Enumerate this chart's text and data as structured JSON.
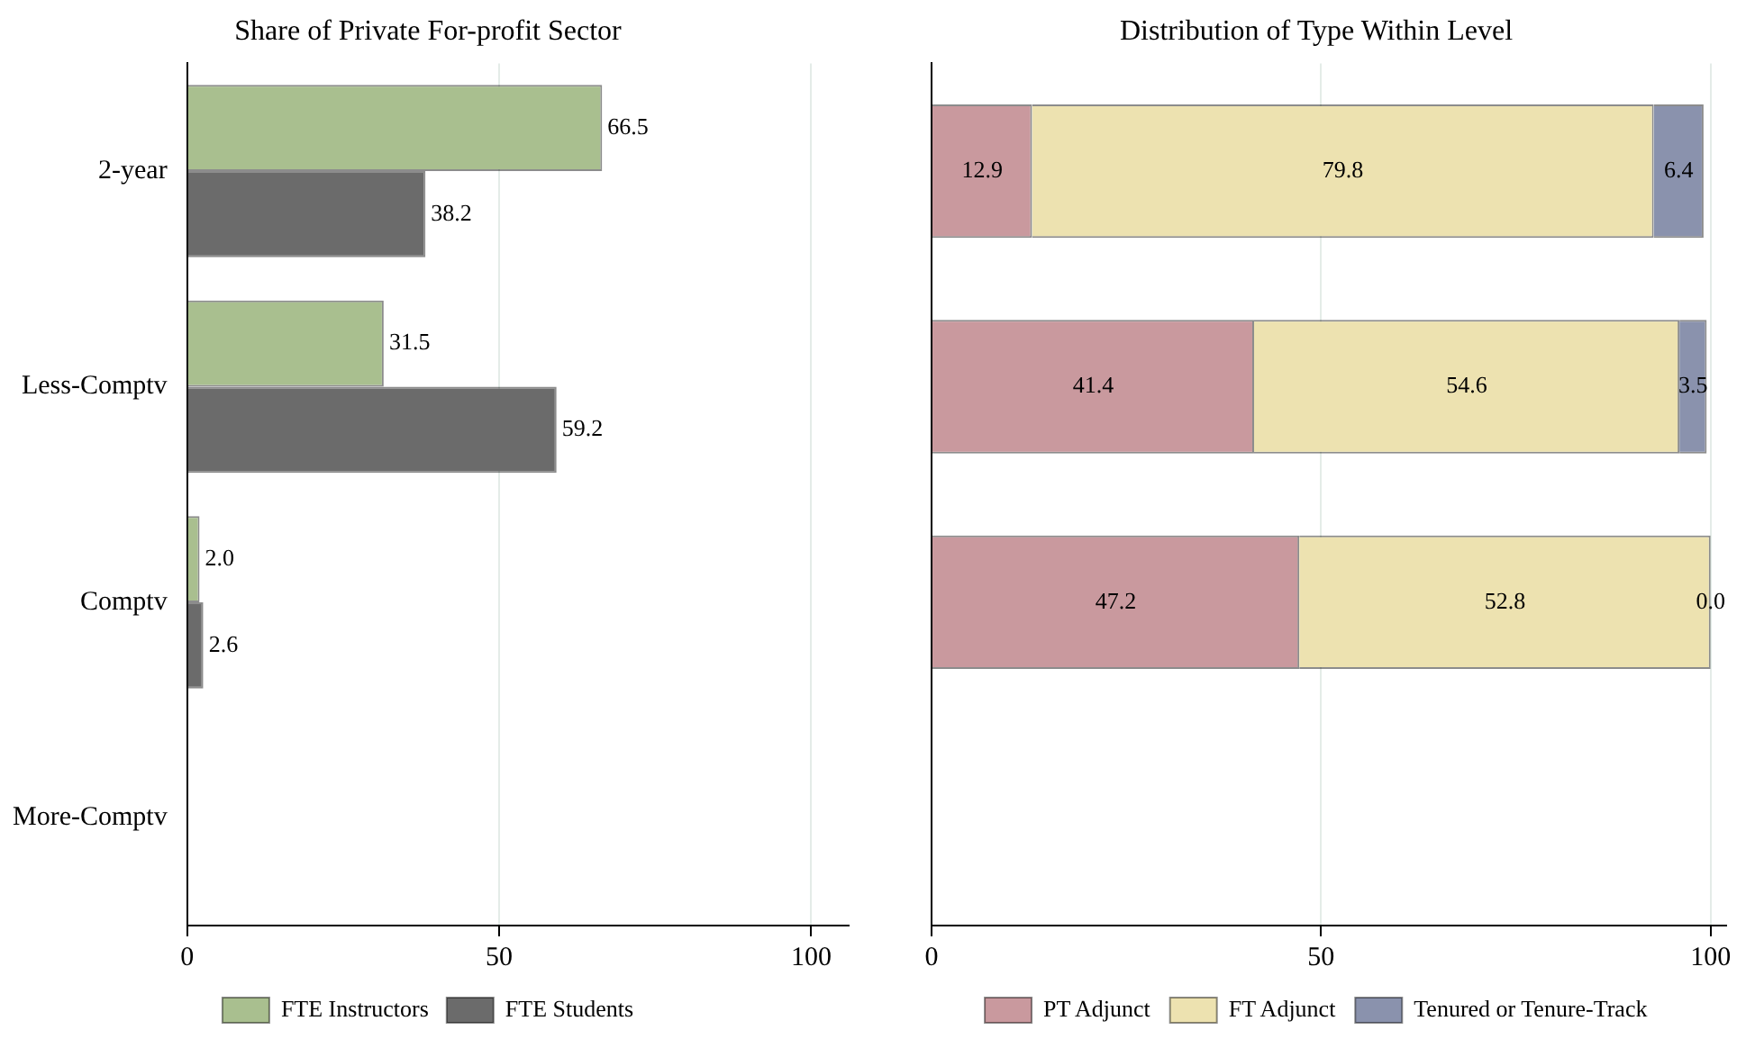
{
  "chart_data": [
    {
      "type": "bar",
      "orientation": "horizontal",
      "title": "Share of Private For-profit Sector",
      "categories": [
        "2-year",
        "Less-Comptv",
        "Comptv",
        "More-Comptv"
      ],
      "series": [
        {
          "name": "FTE Instructors",
          "color": "#a9bf8f",
          "values": [
            66.5,
            31.5,
            2.0,
            null
          ],
          "value_labels": [
            "66.5",
            "31.5",
            "2.0",
            null
          ]
        },
        {
          "name": "FTE Students",
          "color": "#6b6b6b",
          "values": [
            38.2,
            59.2,
            2.6,
            null
          ],
          "value_labels": [
            "38.2",
            "59.2",
            "2.6",
            null
          ]
        }
      ],
      "xlim": [
        0,
        106
      ],
      "xticks": [
        0,
        50,
        100
      ],
      "grid": "x",
      "legend": "bottom"
    },
    {
      "type": "bar",
      "orientation": "horizontal",
      "stacked": true,
      "title": "Distribution of Type Within Level",
      "categories": [
        null,
        null,
        null,
        null
      ],
      "series": [
        {
          "name": "PT Adjunct",
          "color": "#c9999e",
          "values": [
            12.9,
            41.4,
            47.2,
            null
          ],
          "value_labels": [
            "12.9",
            "41.4",
            "47.2",
            null
          ]
        },
        {
          "name": "FT Adjunct",
          "color": "#ede2b0",
          "values": [
            79.8,
            54.6,
            52.8,
            null
          ],
          "value_labels": [
            "79.8",
            "54.6",
            "52.8",
            null
          ]
        },
        {
          "name": "Tenured or Tenure-Track",
          "color": "#8a92ad",
          "values": [
            6.4,
            3.5,
            0.0,
            null
          ],
          "value_labels": [
            "6.4",
            "3.5",
            "0.0",
            null
          ]
        }
      ],
      "xlim": [
        0,
        102
      ],
      "xticks": [
        0,
        50,
        100
      ],
      "grid": "x",
      "legend": "bottom"
    }
  ]
}
